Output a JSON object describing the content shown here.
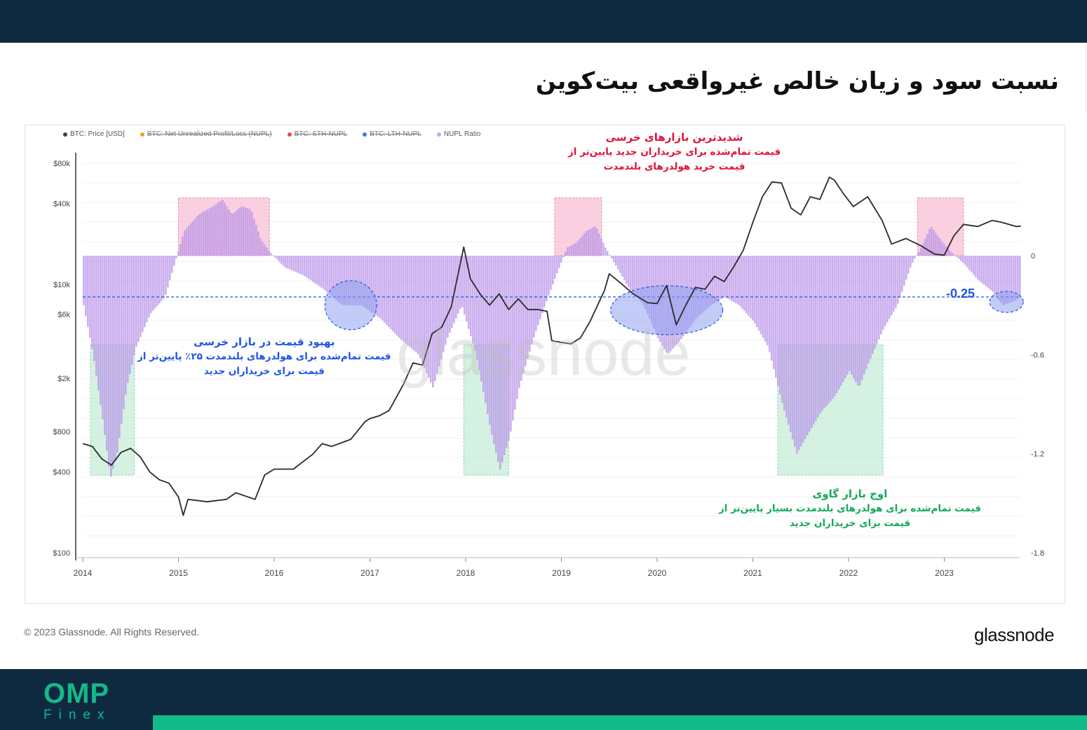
{
  "page": {
    "title": "نسبت سود و زیان خالص غیرواقعی بیت‌کوین",
    "copyright": "© 2023 Glassnode. All Rights Reserved.",
    "brand": "glassnode",
    "footer_logo": {
      "main": "OMP",
      "sub": "Finex"
    },
    "colors": {
      "navy": "#0f2a40",
      "green_accent": "#14b98a"
    }
  },
  "legend": [
    {
      "label": "BTC: Price [USD]",
      "color": "#444444",
      "enabled": true
    },
    {
      "label": "BTC: Net Unrealized Profit/Loss (NUPL)",
      "color": "#f0a030",
      "enabled": false
    },
    {
      "label": "BTC: STH-NUPL",
      "color": "#e05050",
      "enabled": false
    },
    {
      "label": "BTC: LTH-NUPL",
      "color": "#2f80ed",
      "enabled": false
    },
    {
      "label": "NUPL Ratio",
      "color": "#c8a8f0",
      "enabled": true
    }
  ],
  "annotations": {
    "bear": {
      "lines": [
        "شدیدترین بازارهای خرسی",
        "قیمت تمام‌شده برای خریداران جدید پایین‌تر از",
        "قیمت خرید هولدرهای بلندمدت"
      ],
      "color": "#e0123a"
    },
    "recovery": {
      "lines": [
        "بهبود قیمت در بازار خرسی",
        "قیمت تمام‌شده برای هولدرهای بلندمدت ۲۵٪ پایین‌تر از",
        "قیمت برای خریداران جدید"
      ],
      "color": "#1f55e6"
    },
    "bull": {
      "lines": [
        "اوج بازار گاوی",
        "قیمت تمام‌شده برای هولدرهای بلندمدت بسیار پایین‌تر از",
        "قیمت برای خریداران جدید"
      ],
      "color": "#13a85a"
    }
  },
  "reference_line": {
    "value": -0.25,
    "label": "-0.25"
  },
  "chart_data": {
    "type": "area",
    "xlabel": "",
    "x_ticks": [
      "2014",
      "2015",
      "2016",
      "2017",
      "2018",
      "2019",
      "2020",
      "2021",
      "2022",
      "2023"
    ],
    "y_left": {
      "scale": "log",
      "ticks": [
        "$100",
        "$400",
        "$800",
        "$2k",
        "$6k",
        "$10k",
        "$40k",
        "$80k"
      ],
      "values": [
        100,
        400,
        800,
        2000,
        6000,
        10000,
        40000,
        80000
      ]
    },
    "y_right": {
      "scale": "linear",
      "ticks": [
        "0",
        "-0.6",
        "-1.2",
        "-1.8"
      ],
      "values": [
        0,
        -0.6,
        -1.2,
        -1.8
      ],
      "range": [
        -1.8,
        0.35
      ]
    },
    "series": [
      {
        "name": "BTC: Price [USD]",
        "axis": "left",
        "points": [
          [
            2014.0,
            650
          ],
          [
            2014.1,
            620
          ],
          [
            2014.2,
            500
          ],
          [
            2014.3,
            450
          ],
          [
            2014.4,
            560
          ],
          [
            2014.5,
            600
          ],
          [
            2014.6,
            520
          ],
          [
            2014.7,
            400
          ],
          [
            2014.8,
            350
          ],
          [
            2014.9,
            330
          ],
          [
            2015.0,
            260
          ],
          [
            2015.05,
            190
          ],
          [
            2015.1,
            250
          ],
          [
            2015.3,
            240
          ],
          [
            2015.5,
            250
          ],
          [
            2015.6,
            280
          ],
          [
            2015.8,
            250
          ],
          [
            2015.9,
            380
          ],
          [
            2016.0,
            420
          ],
          [
            2016.2,
            420
          ],
          [
            2016.4,
            540
          ],
          [
            2016.5,
            650
          ],
          [
            2016.6,
            620
          ],
          [
            2016.8,
            700
          ],
          [
            2016.95,
            950
          ],
          [
            2017.0,
            1000
          ],
          [
            2017.1,
            1050
          ],
          [
            2017.2,
            1150
          ],
          [
            2017.35,
            1800
          ],
          [
            2017.45,
            2600
          ],
          [
            2017.55,
            2500
          ],
          [
            2017.65,
            4300
          ],
          [
            2017.75,
            4800
          ],
          [
            2017.85,
            6800
          ],
          [
            2017.95,
            15000
          ],
          [
            2017.98,
            19000
          ],
          [
            2018.05,
            11000
          ],
          [
            2018.15,
            8500
          ],
          [
            2018.25,
            7000
          ],
          [
            2018.35,
            8500
          ],
          [
            2018.45,
            6500
          ],
          [
            2018.55,
            7800
          ],
          [
            2018.65,
            6500
          ],
          [
            2018.75,
            6500
          ],
          [
            2018.85,
            6300
          ],
          [
            2018.9,
            3800
          ],
          [
            2019.0,
            3700
          ],
          [
            2019.1,
            3600
          ],
          [
            2019.2,
            4000
          ],
          [
            2019.3,
            5300
          ],
          [
            2019.45,
            9000
          ],
          [
            2019.5,
            12000
          ],
          [
            2019.6,
            10500
          ],
          [
            2019.75,
            8500
          ],
          [
            2019.9,
            7300
          ],
          [
            2020.0,
            7200
          ],
          [
            2020.1,
            9800
          ],
          [
            2020.2,
            5000
          ],
          [
            2020.3,
            7000
          ],
          [
            2020.4,
            9500
          ],
          [
            2020.5,
            9200
          ],
          [
            2020.6,
            11500
          ],
          [
            2020.7,
            10500
          ],
          [
            2020.8,
            13500
          ],
          [
            2020.9,
            18000
          ],
          [
            2021.0,
            29000
          ],
          [
            2021.1,
            45000
          ],
          [
            2021.2,
            58000
          ],
          [
            2021.3,
            57000
          ],
          [
            2021.4,
            37000
          ],
          [
            2021.5,
            33000
          ],
          [
            2021.6,
            45000
          ],
          [
            2021.7,
            43000
          ],
          [
            2021.8,
            63000
          ],
          [
            2021.85,
            60000
          ],
          [
            2021.95,
            47000
          ],
          [
            2022.05,
            38000
          ],
          [
            2022.2,
            45000
          ],
          [
            2022.35,
            30000
          ],
          [
            2022.45,
            20000
          ],
          [
            2022.6,
            22000
          ],
          [
            2022.75,
            19500
          ],
          [
            2022.9,
            16800
          ],
          [
            2023.0,
            16500
          ],
          [
            2023.1,
            23000
          ],
          [
            2023.2,
            28000
          ],
          [
            2023.35,
            27000
          ],
          [
            2023.5,
            30000
          ],
          [
            2023.6,
            29000
          ],
          [
            2023.75,
            27000
          ],
          [
            2023.8,
            27200
          ]
        ]
      },
      {
        "name": "NUPL Ratio",
        "axis": "right",
        "points": [
          [
            2014.0,
            -0.3
          ],
          [
            2014.1,
            -0.6
          ],
          [
            2014.2,
            -1.0
          ],
          [
            2014.28,
            -1.35
          ],
          [
            2014.35,
            -1.2
          ],
          [
            2014.45,
            -0.8
          ],
          [
            2014.55,
            -0.55
          ],
          [
            2014.7,
            -0.35
          ],
          [
            2014.85,
            -0.25
          ],
          [
            2014.95,
            -0.05
          ],
          [
            2015.05,
            0.15
          ],
          [
            2015.2,
            0.25
          ],
          [
            2015.35,
            0.3
          ],
          [
            2015.45,
            0.34
          ],
          [
            2015.55,
            0.25
          ],
          [
            2015.65,
            0.3
          ],
          [
            2015.75,
            0.28
          ],
          [
            2015.85,
            0.1
          ],
          [
            2015.95,
            0.02
          ],
          [
            2016.1,
            -0.07
          ],
          [
            2016.3,
            -0.12
          ],
          [
            2016.5,
            -0.2
          ],
          [
            2016.7,
            -0.3
          ],
          [
            2016.9,
            -0.3
          ],
          [
            2017.1,
            -0.38
          ],
          [
            2017.3,
            -0.5
          ],
          [
            2017.5,
            -0.6
          ],
          [
            2017.65,
            -0.8
          ],
          [
            2017.8,
            -0.5
          ],
          [
            2017.95,
            -0.3
          ],
          [
            2018.1,
            -0.6
          ],
          [
            2018.25,
            -1.05
          ],
          [
            2018.35,
            -1.3
          ],
          [
            2018.45,
            -1.1
          ],
          [
            2018.55,
            -0.8
          ],
          [
            2018.7,
            -0.5
          ],
          [
            2018.85,
            -0.25
          ],
          [
            2018.95,
            -0.1
          ],
          [
            2019.05,
            0.05
          ],
          [
            2019.15,
            0.08
          ],
          [
            2019.25,
            0.15
          ],
          [
            2019.35,
            0.18
          ],
          [
            2019.45,
            0.05
          ],
          [
            2019.55,
            -0.05
          ],
          [
            2019.7,
            -0.2
          ],
          [
            2019.85,
            -0.3
          ],
          [
            2020.0,
            -0.5
          ],
          [
            2020.1,
            -0.6
          ],
          [
            2020.25,
            -0.5
          ],
          [
            2020.4,
            -0.38
          ],
          [
            2020.55,
            -0.3
          ],
          [
            2020.7,
            -0.25
          ],
          [
            2020.85,
            -0.3
          ],
          [
            2021.0,
            -0.4
          ],
          [
            2021.15,
            -0.55
          ],
          [
            2021.3,
            -0.9
          ],
          [
            2021.45,
            -1.2
          ],
          [
            2021.55,
            -1.1
          ],
          [
            2021.7,
            -0.95
          ],
          [
            2021.85,
            -0.85
          ],
          [
            2022.0,
            -0.7
          ],
          [
            2022.1,
            -0.8
          ],
          [
            2022.2,
            -0.65
          ],
          [
            2022.35,
            -0.45
          ],
          [
            2022.5,
            -0.3
          ],
          [
            2022.65,
            -0.05
          ],
          [
            2022.75,
            0.05
          ],
          [
            2022.85,
            0.18
          ],
          [
            2022.95,
            0.1
          ],
          [
            2023.05,
            0.03
          ],
          [
            2023.2,
            -0.05
          ],
          [
            2023.35,
            -0.15
          ],
          [
            2023.5,
            -0.22
          ],
          [
            2023.6,
            -0.3
          ],
          [
            2023.7,
            -0.28
          ],
          [
            2023.8,
            -0.25
          ]
        ]
      }
    ],
    "shaded_regions": [
      {
        "kind": "bear",
        "color": "#f8b7cf",
        "x0": 2015.0,
        "x1": 2015.95,
        "y0": 0.0,
        "y1": 0.35
      },
      {
        "kind": "bear",
        "color": "#f8b7cf",
        "x0": 2018.93,
        "x1": 2019.42,
        "y0": 0.0,
        "y1": 0.35
      },
      {
        "kind": "bear",
        "color": "#f8b7cf",
        "x0": 2022.72,
        "x1": 2023.2,
        "y0": 0.0,
        "y1": 0.35
      },
      {
        "kind": "bull",
        "color": "#bfe9d2",
        "x0": 2014.08,
        "x1": 2014.54,
        "y0": -1.33,
        "y1": -0.54
      },
      {
        "kind": "bull",
        "color": "#bfe9d2",
        "x0": 2017.98,
        "x1": 2018.45,
        "y0": -1.33,
        "y1": -0.54
      },
      {
        "kind": "bull",
        "color": "#bfe9d2",
        "x0": 2021.26,
        "x1": 2022.36,
        "y0": -1.33,
        "y1": -0.54
      }
    ],
    "highlight_ellipses": [
      {
        "x": 2016.8,
        "y": -0.3
      },
      {
        "x": 2020.1,
        "y": -0.33
      },
      {
        "x": 2023.65,
        "y": -0.28
      }
    ]
  }
}
